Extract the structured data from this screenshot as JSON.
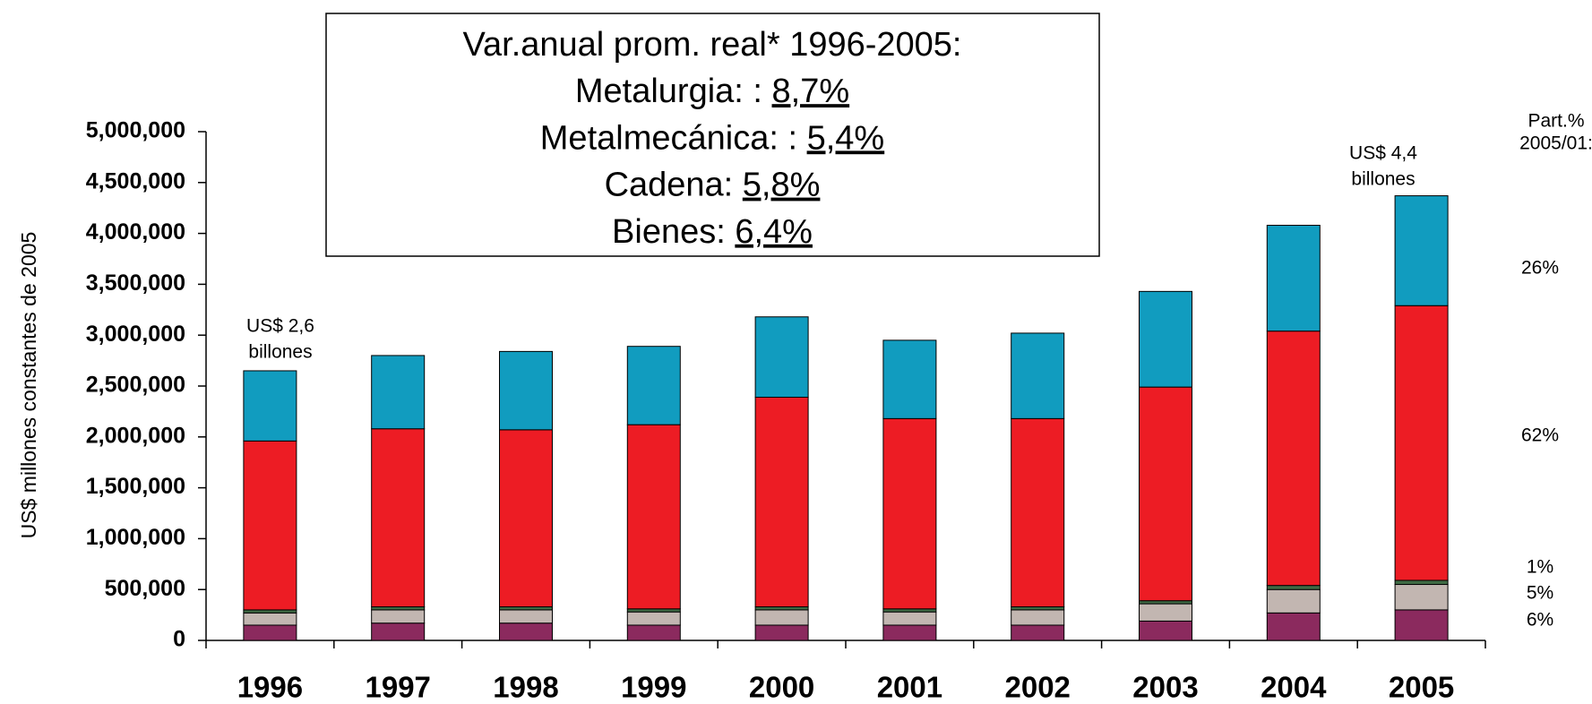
{
  "chart_data": {
    "type": "stacked_bar",
    "y_label": "US$ millones constantes de 2005",
    "categories": [
      "1996",
      "1997",
      "1998",
      "1999",
      "2000",
      "2001",
      "2002",
      "2003",
      "2004",
      "2005"
    ],
    "series": [
      {
        "color": "#8b2a5e",
        "values": [
          150000,
          170000,
          170000,
          150000,
          150000,
          150000,
          150000,
          190000,
          270000,
          300000
        ]
      },
      {
        "color": "#c2b6b1",
        "values": [
          120000,
          130000,
          130000,
          130000,
          150000,
          130000,
          150000,
          170000,
          230000,
          250000
        ]
      },
      {
        "color": "#3f6b45",
        "values": [
          30000,
          30000,
          30000,
          30000,
          30000,
          30000,
          30000,
          30000,
          40000,
          40000
        ]
      },
      {
        "color": "#ed1c24",
        "values": [
          1660000,
          1750000,
          1740000,
          1810000,
          2060000,
          1870000,
          1850000,
          2100000,
          2500000,
          2700000
        ]
      },
      {
        "color": "#119cbf",
        "values": [
          690000,
          720000,
          770000,
          770000,
          790000,
          770000,
          840000,
          940000,
          1040000,
          1080000
        ]
      }
    ],
    "ylim": [
      0,
      5000000
    ],
    "yticks": [
      0,
      {
        "value": 500000,
        "label": "500,000"
      },
      {
        "value": 1000000,
        "label": "1,000,000"
      },
      {
        "value": 1500000,
        "label": "1,500,000"
      },
      {
        "value": 2000000,
        "label": "2,000,000"
      },
      {
        "value": 2500000,
        "label": "2,500,000"
      },
      {
        "value": 3000000,
        "label": "3,000,000"
      },
      {
        "value": 3500000,
        "label": "3,500,000"
      },
      {
        "value": 4000000,
        "label": "4,000,000"
      },
      {
        "value": 4500000,
        "label": "4,500,000"
      },
      {
        "value": 5000000,
        "label": "5,000,000"
      }
    ],
    "box": [
      {
        "text": "Var.anual prom. real* 1996-2005:"
      },
      {
        "text": "Metalurgia: : ",
        "value": "8,7%"
      },
      {
        "text": "Metalmecánica: : ",
        "value": "5,4%"
      },
      {
        "text": "Cadena: ",
        "value": "5,8%"
      },
      {
        "text": "Bienes: ",
        "value": "6,4%"
      }
    ],
    "annotations": [
      {
        "lines": [
          "US$ 2,6",
          "billones"
        ],
        "category": "1996"
      },
      {
        "lines": [
          "US$ 4,4",
          "billones"
        ],
        "category": "2005"
      }
    ],
    "share_header": [
      "Part.%",
      "2005/01:"
    ],
    "shares": [
      "26%",
      "62%",
      "1%",
      "5%",
      "6%"
    ]
  }
}
